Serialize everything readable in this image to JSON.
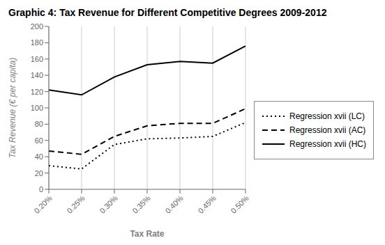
{
  "chart_data": {
    "type": "line",
    "title": "Graphic 4: Tax Revenue for Different Competitive Degrees 2009-2012",
    "xlabel": "Tax Rate",
    "ylabel": "Tax Revenue (€ per capita)",
    "categories": [
      "0.20%",
      "0.25%",
      "0.30%",
      "0.35%",
      "0.40%",
      "0.45%",
      "0.50%"
    ],
    "series": [
      {
        "name": "Regression xvii (LC)",
        "color": "#000000",
        "line_style": "dotted",
        "values": [
          29,
          25,
          55,
          62,
          63,
          65,
          82
        ]
      },
      {
        "name": "Regression xvii (AC)",
        "color": "#000000",
        "line_style": "dashed",
        "values": [
          47,
          43,
          65,
          78,
          81,
          81,
          99
        ]
      },
      {
        "name": "Regression xvii (HC)",
        "color": "#000000",
        "line_style": "solid",
        "values": [
          122,
          116,
          138,
          153,
          157,
          155,
          176
        ]
      }
    ],
    "ylim": [
      0,
      200
    ],
    "yticks": [
      0,
      20,
      40,
      60,
      80,
      100,
      120,
      140,
      160,
      180,
      200
    ],
    "grid": "x",
    "legend": "right"
  }
}
